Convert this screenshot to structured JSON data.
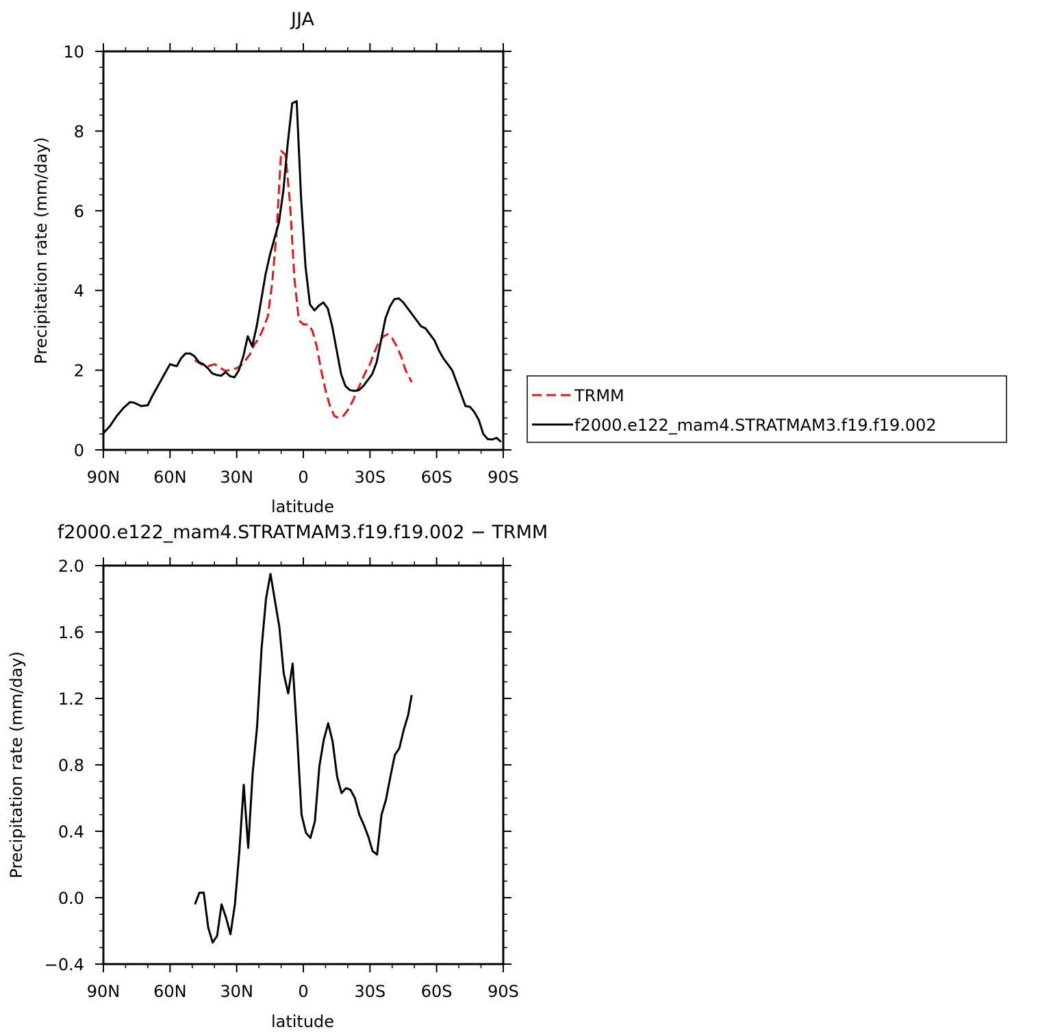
{
  "chart_data": [
    {
      "type": "line",
      "title": "JJA",
      "xlabel": "latitude",
      "ylabel": "Precipitation rate (mm/day)",
      "xlim": [
        90,
        -90
      ],
      "ylim": [
        0,
        10
      ],
      "xticks": [
        90,
        60,
        30,
        0,
        -30,
        -60,
        -90
      ],
      "xtick_labels": [
        "90N",
        "60N",
        "30N",
        "0",
        "30S",
        "60S",
        "90S"
      ],
      "yticks": [
        0,
        2,
        4,
        6,
        8,
        10
      ],
      "ytick_labels": [
        "0",
        "2",
        "4",
        "6",
        "8",
        "10"
      ],
      "legend_position": "right",
      "series": [
        {
          "name": "TRMM",
          "color": "#e8141c",
          "style": "dashed",
          "x": [
            48.8,
            46,
            43,
            40,
            38,
            35,
            32,
            30,
            28,
            26,
            24,
            22,
            20,
            18,
            16,
            14,
            12,
            10,
            8,
            6,
            4,
            2,
            0,
            -2,
            -4,
            -6,
            -8,
            -10,
            -12,
            -14,
            -16,
            -18,
            -20,
            -22,
            -24,
            -26,
            -28,
            -30,
            -32,
            -34,
            -36,
            -38,
            -40,
            -42,
            -44,
            -46,
            -48.8
          ],
          "y": [
            2.25,
            2.15,
            2.1,
            2.15,
            2.08,
            1.98,
            2.02,
            2.05,
            2.12,
            2.25,
            2.4,
            2.65,
            2.8,
            3.05,
            3.35,
            4.2,
            5.5,
            7.5,
            7.4,
            6.2,
            4.3,
            3.25,
            3.15,
            3.15,
            3.0,
            2.6,
            2.0,
            1.5,
            1.1,
            0.85,
            0.8,
            0.85,
            1.0,
            1.2,
            1.45,
            1.7,
            1.95,
            2.15,
            2.45,
            2.7,
            2.85,
            2.9,
            2.8,
            2.6,
            2.35,
            2.0,
            1.7
          ]
        },
        {
          "name": "f2000.e122_mam4.STRATMAM3.f19.f19.002",
          "color": "#000000",
          "style": "solid",
          "x": [
            90,
            87,
            84,
            81,
            78,
            76,
            73,
            70,
            68,
            65,
            62,
            60,
            57,
            55,
            53,
            51,
            49,
            47,
            45,
            43,
            41,
            39,
            37,
            35,
            33,
            31,
            29,
            27,
            25,
            23,
            21,
            19,
            17,
            15,
            13,
            11,
            9,
            7,
            5,
            3,
            1,
            -1,
            -3,
            -5,
            -7,
            -9,
            -11,
            -13,
            -15,
            -17,
            -19,
            -21,
            -23,
            -25,
            -27,
            -29,
            -31,
            -33,
            -35,
            -37,
            -39,
            -41,
            -43,
            -45,
            -47,
            -49,
            -51,
            -53,
            -55,
            -57,
            -59,
            -61,
            -63,
            -65,
            -67,
            -69,
            -71,
            -73,
            -75,
            -77,
            -79,
            -81,
            -83,
            -85,
            -87,
            -89
          ],
          "y": [
            0.42,
            0.6,
            0.85,
            1.05,
            1.2,
            1.18,
            1.1,
            1.12,
            1.35,
            1.65,
            1.95,
            2.15,
            2.1,
            2.3,
            2.42,
            2.42,
            2.35,
            2.2,
            2.15,
            2.05,
            1.92,
            1.88,
            1.86,
            1.95,
            1.85,
            1.82,
            2.0,
            2.35,
            2.85,
            2.6,
            3.1,
            3.75,
            4.4,
            4.9,
            5.3,
            5.7,
            6.5,
            7.7,
            8.7,
            8.75,
            6.3,
            4.6,
            3.65,
            3.5,
            3.62,
            3.7,
            3.55,
            3.1,
            2.5,
            1.9,
            1.6,
            1.5,
            1.48,
            1.5,
            1.6,
            1.75,
            1.9,
            2.2,
            2.75,
            3.3,
            3.6,
            3.78,
            3.8,
            3.7,
            3.55,
            3.4,
            3.25,
            3.1,
            3.05,
            2.9,
            2.75,
            2.5,
            2.3,
            2.15,
            2.0,
            1.7,
            1.4,
            1.1,
            1.08,
            0.95,
            0.75,
            0.4,
            0.27,
            0.26,
            0.3,
            0.2
          ]
        }
      ]
    },
    {
      "type": "line",
      "title": "f2000.e122_mam4.STRATMAM3.f19.f19.002 − TRMM",
      "xlabel": "latitude",
      "ylabel": "Precipitation rate (mm/day)",
      "xlim": [
        90,
        -90
      ],
      "ylim": [
        -0.4,
        2.0
      ],
      "xticks": [
        90,
        60,
        30,
        0,
        -30,
        -60,
        -90
      ],
      "xtick_labels": [
        "90N",
        "60N",
        "30N",
        "0",
        "30S",
        "60S",
        "90S"
      ],
      "yticks": [
        -0.4,
        0.0,
        0.4,
        0.8,
        1.2,
        1.6,
        2.0
      ],
      "ytick_labels": [
        "−0.4",
        "0.0",
        "0.4",
        "0.8",
        "1.2",
        "1.6",
        "2.0"
      ],
      "series": [
        {
          "color": "#000000",
          "style": "solid",
          "x": [
            48.8,
            46.8,
            44.8,
            42.8,
            40.8,
            38.8,
            36.8,
            34.8,
            32.8,
            30.8,
            28.8,
            26.8,
            24.8,
            22.8,
            20.8,
            18.8,
            16.8,
            14.8,
            12.8,
            10.8,
            8.8,
            6.8,
            4.8,
            2.8,
            0.8,
            -1.2,
            -3.2,
            -5.2,
            -7.2,
            -9.2,
            -11.2,
            -13.2,
            -15.2,
            -17.2,
            -19.2,
            -21.2,
            -23.2,
            -25.2,
            -27.2,
            -29.2,
            -31.2,
            -33.2,
            -35.2,
            -37.2,
            -39.2,
            -41.2,
            -43.2,
            -45.2,
            -47.2,
            -48.8
          ],
          "y": [
            -0.04,
            0.03,
            0.03,
            -0.18,
            -0.27,
            -0.23,
            -0.04,
            -0.12,
            -0.22,
            -0.04,
            0.28,
            0.68,
            0.3,
            0.75,
            1.03,
            1.5,
            1.8,
            1.95,
            1.79,
            1.63,
            1.35,
            1.23,
            1.41,
            0.98,
            0.5,
            0.39,
            0.36,
            0.46,
            0.79,
            0.95,
            1.05,
            0.94,
            0.73,
            0.63,
            0.66,
            0.65,
            0.6,
            0.5,
            0.44,
            0.37,
            0.28,
            0.26,
            0.5,
            0.59,
            0.73,
            0.86,
            0.9,
            1.01,
            1.1,
            1.22
          ]
        }
      ]
    }
  ]
}
